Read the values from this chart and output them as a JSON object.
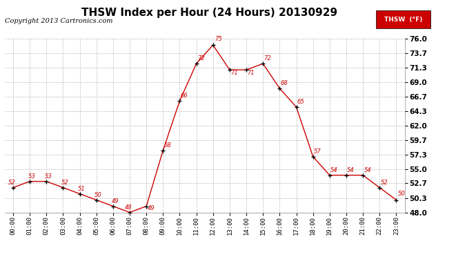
{
  "title": "THSW Index per Hour (24 Hours) 20130929",
  "copyright": "Copyright 2013 Cartronics.com",
  "legend_label": "THSW  (°F)",
  "hours": [
    "00:00",
    "01:00",
    "02:00",
    "03:00",
    "04:00",
    "05:00",
    "06:00",
    "07:00",
    "08:00",
    "09:00",
    "10:00",
    "11:00",
    "12:00",
    "13:00",
    "14:00",
    "15:00",
    "16:00",
    "17:00",
    "18:00",
    "19:00",
    "20:00",
    "21:00",
    "22:00",
    "23:00"
  ],
  "values": [
    52,
    53,
    53,
    52,
    51,
    50,
    49,
    48,
    49,
    58,
    66,
    72,
    75,
    71,
    71,
    72,
    68,
    65,
    57,
    54,
    54,
    54,
    52,
    50
  ],
  "ylim": [
    48.0,
    76.0
  ],
  "yticks": [
    48.0,
    50.3,
    52.7,
    55.0,
    57.3,
    59.7,
    62.0,
    64.3,
    66.7,
    69.0,
    71.3,
    73.7,
    76.0
  ],
  "line_color": "#cc0000",
  "marker_color": "#000000",
  "label_color": "#cc0000",
  "bg_color": "#ffffff",
  "grid_color": "#bbbbbb",
  "title_fontsize": 11,
  "copyright_fontsize": 7,
  "legend_bg": "#cc0000",
  "legend_fg": "#ffffff"
}
